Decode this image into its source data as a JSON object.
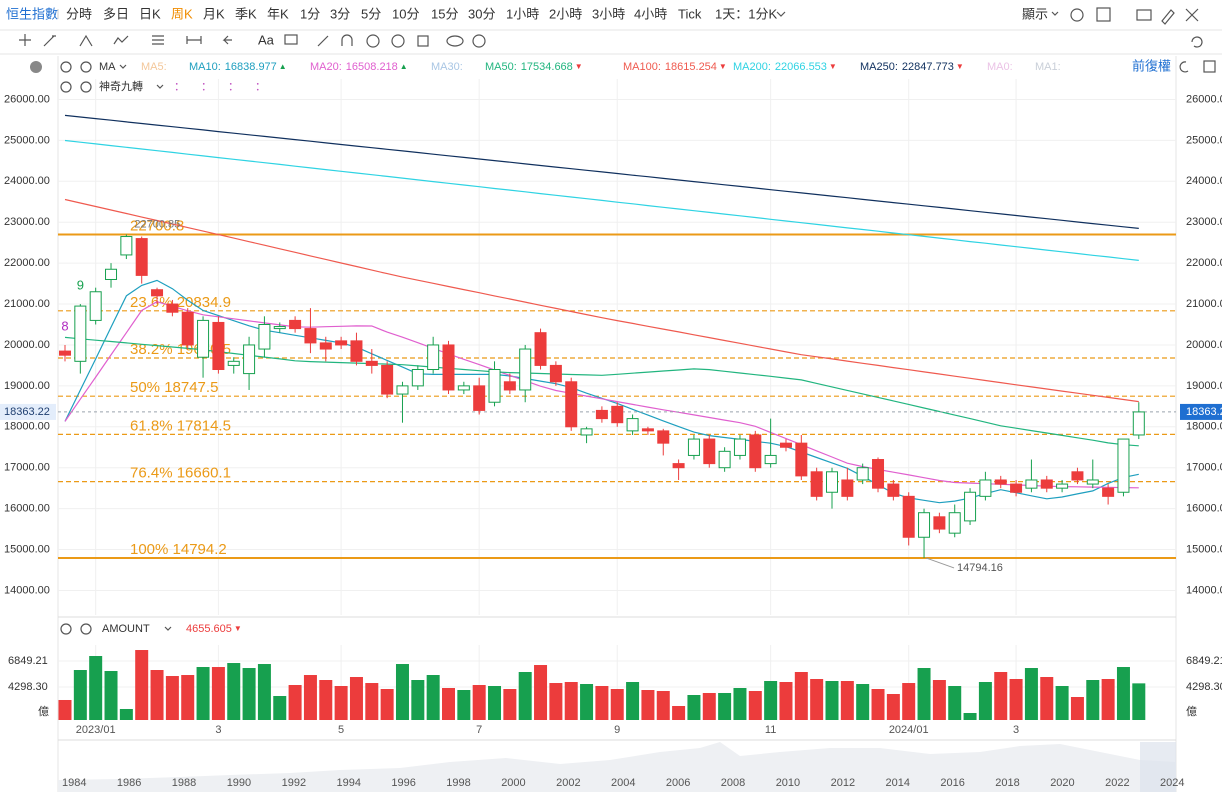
{
  "toolbar": {
    "symbol": "恒生指數",
    "tabs": [
      "分時",
      "多日",
      "日K",
      "周K",
      "月K",
      "季K",
      "年K",
      "1分",
      "3分",
      "5分",
      "10分",
      "15分",
      "30分",
      "1小時",
      "2小時",
      "3小時",
      "4小時",
      "Tick"
    ],
    "active_tab": "周K",
    "interval": "1天：1分K",
    "display": "顯示",
    "text_tool": "Aa"
  },
  "chart_data": {
    "type": "candlestick",
    "indicator": "MA",
    "adjust": "前復權",
    "overlay": "神奇九轉",
    "overlay_fields": [
      "：",
      "：",
      "：",
      "："
    ],
    "up_color": "#17a04f",
    "down_color": "#ec3c3c",
    "ylim": [
      13400,
      26500
    ],
    "yticks": [
      {
        "value": 14000,
        "label": "14000.00"
      },
      {
        "value": 15000,
        "label": "15000.00"
      },
      {
        "value": 16000,
        "label": "16000.00"
      },
      {
        "value": 17000,
        "label": "17000.00"
      },
      {
        "value": 18000,
        "label": "18000.00"
      },
      {
        "value": 19000,
        "label": "19000.00"
      },
      {
        "value": 20000,
        "label": "20000.00"
      },
      {
        "value": 21000,
        "label": "21000.00"
      },
      {
        "value": 22000,
        "label": "22000.00"
      },
      {
        "value": 23000,
        "label": "23000.00"
      },
      {
        "value": 24000,
        "label": "24000.00"
      },
      {
        "value": 25000,
        "label": "25000.00"
      },
      {
        "value": 26000,
        "label": "26000.00"
      }
    ],
    "grid": true,
    "categories": [
      null,
      null,
      "2023/01",
      null,
      null,
      null,
      null,
      null,
      null,
      null,
      "3",
      null,
      null,
      null,
      null,
      null,
      null,
      null,
      "5",
      null,
      null,
      null,
      null,
      null,
      null,
      null,
      null,
      "7",
      null,
      null,
      null,
      null,
      null,
      null,
      null,
      null,
      "9",
      null,
      null,
      null,
      null,
      null,
      null,
      null,
      null,
      null,
      "11",
      null,
      null,
      null,
      null,
      null,
      null,
      null,
      null,
      "2024/01",
      null,
      null,
      null,
      null,
      null,
      null,
      "3",
      null,
      null,
      null,
      null,
      null,
      null,
      null,
      null
    ],
    "candles": {
      "open": [
        19850,
        19600,
        20600,
        21600,
        22200,
        22600,
        21350,
        21000,
        20800,
        19700,
        20550,
        19500,
        19300,
        19900,
        20400,
        20600,
        20400,
        20050,
        20100,
        20100,
        19600,
        19500,
        18800,
        19000,
        19400,
        20000,
        18900,
        19000,
        18600,
        19100,
        18900,
        20300,
        19500,
        19100,
        17800,
        18400,
        18500,
        17900,
        17950,
        17900,
        17100,
        17300,
        17700,
        17000,
        17300,
        17800,
        17100,
        17600,
        17600,
        16900,
        16400,
        16700,
        16700,
        17200,
        16600,
        16300,
        15300,
        15800,
        15400,
        15700,
        16300,
        16700,
        16600,
        16500,
        16700,
        16500,
        16900,
        16600,
        16500,
        16400,
        17800
      ],
      "high": [
        20000,
        21000,
        21400,
        22000,
        22700.85,
        22650,
        21400,
        21100,
        20900,
        20700,
        20700,
        19700,
        20200,
        20700,
        20550,
        20700,
        20900,
        20200,
        20200,
        20300,
        19900,
        19600,
        19100,
        19500,
        20200,
        20100,
        19100,
        19200,
        19600,
        19300,
        20000,
        20400,
        19600,
        19200,
        18000,
        18500,
        18600,
        18300,
        18000,
        17950,
        17200,
        17800,
        17800,
        17500,
        17800,
        17900,
        18200,
        17700,
        17800,
        17000,
        17000,
        17000,
        17100,
        17250,
        16700,
        16400,
        16000,
        15900,
        16100,
        16500,
        16900,
        16800,
        16700,
        17200,
        16800,
        16700,
        17000,
        17200,
        16600,
        17700,
        18600
      ],
      "low": [
        19600,
        19300,
        20500,
        21400,
        22100,
        21500,
        21000,
        20700,
        19900,
        19200,
        19300,
        19300,
        18900,
        19700,
        20300,
        20300,
        19800,
        19600,
        19900,
        19500,
        19300,
        18700,
        18100,
        18900,
        19300,
        18800,
        18800,
        18300,
        18500,
        18800,
        18600,
        19400,
        19000,
        17900,
        17600,
        18100,
        18000,
        17800,
        17800,
        17300,
        16700,
        17200,
        17000,
        16900,
        17200,
        16900,
        17000,
        17400,
        16700,
        16200,
        16000,
        16200,
        16600,
        16400,
        16200,
        15100,
        14794.16,
        15400,
        15300,
        15600,
        16200,
        16500,
        16300,
        16400,
        16400,
        16400,
        16600,
        16500,
        16100,
        16300,
        17700
      ],
      "close": [
        19750,
        20950,
        21300,
        21850,
        22650,
        21700,
        21200,
        20800,
        20000,
        20600,
        19400,
        19600,
        20000,
        20500,
        20450,
        20400,
        20050,
        19900,
        20000,
        19600,
        19500,
        18800,
        19000,
        19400,
        20000,
        18900,
        19000,
        18400,
        19400,
        18900,
        19900,
        19500,
        19100,
        18000,
        17950,
        18200,
        18100,
        18200,
        17900,
        17600,
        17000,
        17700,
        17100,
        17400,
        17700,
        17000,
        17300,
        17500,
        16800,
        16300,
        16900,
        16300,
        17000,
        16500,
        16300,
        15300,
        15900,
        15500,
        15900,
        16400,
        16700,
        16600,
        16400,
        16700,
        16500,
        16600,
        16700,
        16700,
        16300,
        17700,
        18363.22
      ]
    },
    "td_counts": [
      "8",
      "9",
      null,
      null,
      null,
      null,
      null,
      null,
      null,
      null,
      null,
      null,
      null,
      null,
      null,
      null,
      null,
      null,
      null,
      null,
      null,
      null,
      null,
      null,
      null,
      null,
      null,
      null,
      null,
      null,
      null,
      null,
      null,
      null,
      null,
      null,
      null,
      null,
      null,
      null,
      null,
      null,
      null,
      null,
      null,
      null,
      null,
      null,
      null,
      null,
      null,
      null,
      null,
      null,
      null,
      null,
      null,
      null,
      null,
      null,
      null,
      null,
      null,
      null,
      null,
      null,
      null,
      null,
      null,
      null,
      null
    ],
    "td_colors": [
      "#b02cc0",
      "#17a04f"
    ],
    "moving_averages": [
      {
        "label": "MA5:",
        "color": "#f3c79a"
      },
      {
        "label": "MA10:",
        "color": "#1e9fbf",
        "value": 16838.977,
        "trend": "▲",
        "trend_color": "#17a04f",
        "values": [
          18131,
          18896,
          19660,
          20431,
          21202,
          21455,
          21577,
          21376,
          21094,
          20843,
          20717,
          20592,
          20467,
          20361,
          20299,
          20237,
          20175,
          20112,
          20050,
          19948,
          19785,
          19622,
          19459,
          19296,
          19280,
          19280,
          19280,
          19280,
          19280,
          19242,
          19179,
          19116,
          19054,
          18957,
          18822,
          18696,
          18571,
          18427,
          18286,
          18145,
          18004,
          17870,
          17785,
          17738,
          17691,
          17644,
          17598,
          17516,
          17383,
          17250,
          17117,
          16985,
          16789,
          16583,
          16377,
          16263,
          16204,
          16145,
          16184,
          16257,
          16367,
          16462,
          16388,
          16314,
          16240,
          16285,
          16359,
          16433,
          16617,
          16764,
          16838.977
        ]
      },
      {
        "label": "MA20:",
        "color": "#e060cf",
        "value": 16508.218,
        "trend": "▲",
        "trend_color": "#17a04f",
        "values": [
          18131,
          18673,
          19215,
          19757,
          20299,
          20841,
          21056,
          20946,
          20835,
          20736,
          20687,
          20638,
          20589,
          20540,
          20491,
          20443,
          20434,
          20445,
          20456,
          20466,
          20463,
          20313,
          20190,
          20054,
          19918,
          19782,
          19650,
          19519,
          19387,
          19256,
          19124,
          18992,
          18886,
          18818,
          18750,
          18683,
          18615,
          18547,
          18480,
          18416,
          18353,
          18290,
          18227,
          18164,
          18101,
          18013,
          17863,
          17712,
          17562,
          17411,
          17261,
          17110,
          17026,
          16958,
          16891,
          16823,
          16755,
          16688,
          16639,
          16624,
          16609,
          16594,
          16579,
          16564,
          16549,
          16539,
          16533,
          16526,
          16520,
          16514,
          16508.218
        ]
      },
      {
        "label": "MA30:",
        "color": "#a9c6e4"
      },
      {
        "label": "MA50:",
        "color": "#22b57f",
        "value": 17534.668,
        "trend": "▼",
        "trend_color": "#ec3c3c",
        "values": [
          20184,
          20151,
          20117,
          20084,
          20050,
          20017,
          19984,
          19950,
          19917,
          19881,
          19836,
          19792,
          19747,
          19702,
          19658,
          19613,
          19592,
          19580,
          19568,
          19557,
          19545,
          19533,
          19518,
          19488,
          19459,
          19430,
          19400,
          19371,
          19342,
          19325,
          19314,
          19302,
          19290,
          19279,
          19267,
          19258,
          19284,
          19310,
          19337,
          19363,
          19389,
          19415,
          19398,
          19357,
          19315,
          19274,
          19233,
          19191,
          19146,
          19060,
          18974,
          18889,
          18803,
          18717,
          18632,
          18548,
          18460,
          18373,
          18286,
          18199,
          18111,
          18024,
          17965,
          17906,
          17848,
          17789,
          17730,
          17671,
          17606,
          17563,
          17534.668
        ]
      },
      {
        "label": "MA100:",
        "color": "#ef5a4f",
        "value": 18615.254,
        "trend": "▼",
        "trend_color": "#ec3c3c",
        "values": [
          23556,
          23470,
          23384,
          23298,
          23212,
          23126,
          23041,
          22955,
          22869,
          22783,
          22697,
          22611,
          22524,
          22437,
          22351,
          22264,
          22177,
          22090,
          22004,
          21917,
          21830,
          21743,
          21659,
          21582,
          21506,
          21429,
          21353,
          21276,
          21200,
          21123,
          21047,
          20970,
          20894,
          20817,
          20741,
          20665,
          20596,
          20526,
          20457,
          20387,
          20318,
          20248,
          20179,
          20109,
          20040,
          19970,
          19901,
          19831,
          19763,
          19710,
          19658,
          19605,
          19552,
          19500,
          19447,
          19395,
          19342,
          19289,
          19237,
          19184,
          19131,
          19079,
          19027,
          18976,
          18924,
          18873,
          18821,
          18770,
          18718,
          18667,
          18615.254
        ]
      },
      {
        "label": "MA200:",
        "color": "#2fd3e3",
        "value": 22066.553,
        "trend": "▼",
        "trend_color": "#ec3c3c",
        "values": [
          24998,
          24956,
          24914,
          24872,
          24830,
          24789,
          24747,
          24705,
          24663,
          24621,
          24579,
          24537,
          24495,
          24454,
          24412,
          24370,
          24328,
          24286,
          24244,
          24202,
          24160,
          24119,
          24077,
          24035,
          23993,
          23951,
          23909,
          23867,
          23825,
          23784,
          23742,
          23700,
          23658,
          23616,
          23574,
          23532,
          23490,
          23449,
          23407,
          23365,
          23323,
          23281,
          23239,
          23197,
          23156,
          23114,
          23072,
          23030,
          22988,
          22946,
          22904,
          22862,
          22821,
          22779,
          22737,
          22695,
          22653,
          22611,
          22569,
          22527,
          22486,
          22444,
          22402,
          22360,
          22318,
          22276,
          22234,
          22192,
          22151,
          22109,
          22066.553
        ]
      },
      {
        "label": "MA250:",
        "color": "#10305e",
        "value": 22847.773,
        "trend": "▼",
        "trend_color": "#ec3c3c",
        "values": [
          25610,
          25571,
          25531,
          25492,
          25452,
          25413,
          25373,
          25334,
          25294,
          25255,
          25215,
          25176,
          25137,
          25097,
          25058,
          25018,
          24979,
          24939,
          24900,
          24860,
          24821,
          24781,
          24742,
          24703,
          24663,
          24624,
          24584,
          24545,
          24505,
          24466,
          24426,
          24387,
          24348,
          24308,
          24269,
          24229,
          24190,
          24150,
          24111,
          24071,
          24032,
          23992,
          23953,
          23914,
          23874,
          23835,
          23795,
          23756,
          23716,
          23677,
          23637,
          23598,
          23558,
          23519,
          23480,
          23440,
          23401,
          23361,
          23322,
          23282,
          23243,
          23203,
          23164,
          23124,
          23085,
          23046,
          23006,
          22967,
          22927,
          22888,
          22847.773
        ]
      },
      {
        "label": "MA0:",
        "color": "#ebc3e6"
      },
      {
        "label": "MA1:",
        "color": "#c9cfd8"
      }
    ],
    "fib_color": "#eb9a17",
    "fib_levels": [
      {
        "value": 22700.8,
        "label": "22700.8",
        "style": "solid"
      },
      {
        "value": 20834.9,
        "label": "23.6% 20834.9",
        "style": "dashed"
      },
      {
        "value": 19680.5,
        "label": "38.2% 19680.5",
        "style": "dashed"
      },
      {
        "value": 18747.5,
        "label": "50% 18747.5",
        "style": "dashed"
      },
      {
        "value": 17814.5,
        "label": "61.8% 17814.5",
        "style": "dashed"
      },
      {
        "value": 16660.1,
        "label": "76.4% 16660.1",
        "style": "dashed"
      },
      {
        "value": 14794.2,
        "label": "100% 14794.2",
        "style": "solid"
      }
    ],
    "volume": {
      "label": "AMOUNT",
      "unit": "億",
      "trend": "▼",
      "trend_color": "#ec3c3c",
      "ylim": [
        1060,
        8420
      ],
      "yticks": [
        6849.21,
        {
          "value": 4298.3,
          "label": "4298.30"
        }
      ],
      "values": [
        3023,
        5966,
        7340,
        5868,
        2140,
        7928,
        5966,
        5377,
        5475,
        6260,
        6260,
        6652,
        6162,
        6554,
        3415,
        4494,
        5475,
        4985,
        4396,
        5279,
        4690,
        4102,
        6554,
        4985,
        5475,
        4200,
        4004,
        4494,
        4396,
        4102,
        5770,
        6456,
        4690,
        4789,
        4592,
        4396,
        4102,
        4789,
        4004,
        3906,
        2434,
        3513,
        3710,
        3710,
        4200,
        3906,
        4887,
        4789,
        5770,
        5083,
        4887,
        4887,
        4592,
        4102,
        3611,
        4690,
        6162,
        4985,
        4396,
        1747,
        4789,
        5770,
        5083,
        6162,
        5279,
        4396,
        3317,
        4985,
        5083,
        6260,
        4655.605
      ]
    },
    "navigator_years": [
      "1984",
      "1986",
      "1988",
      "1990",
      "1992",
      "1994",
      "1996",
      "1998",
      "2000",
      "2002",
      "2004",
      "2006",
      "2008",
      "2010",
      "2012",
      "2014",
      "2016",
      "2018",
      "2020",
      "2022",
      "2024"
    ]
  }
}
